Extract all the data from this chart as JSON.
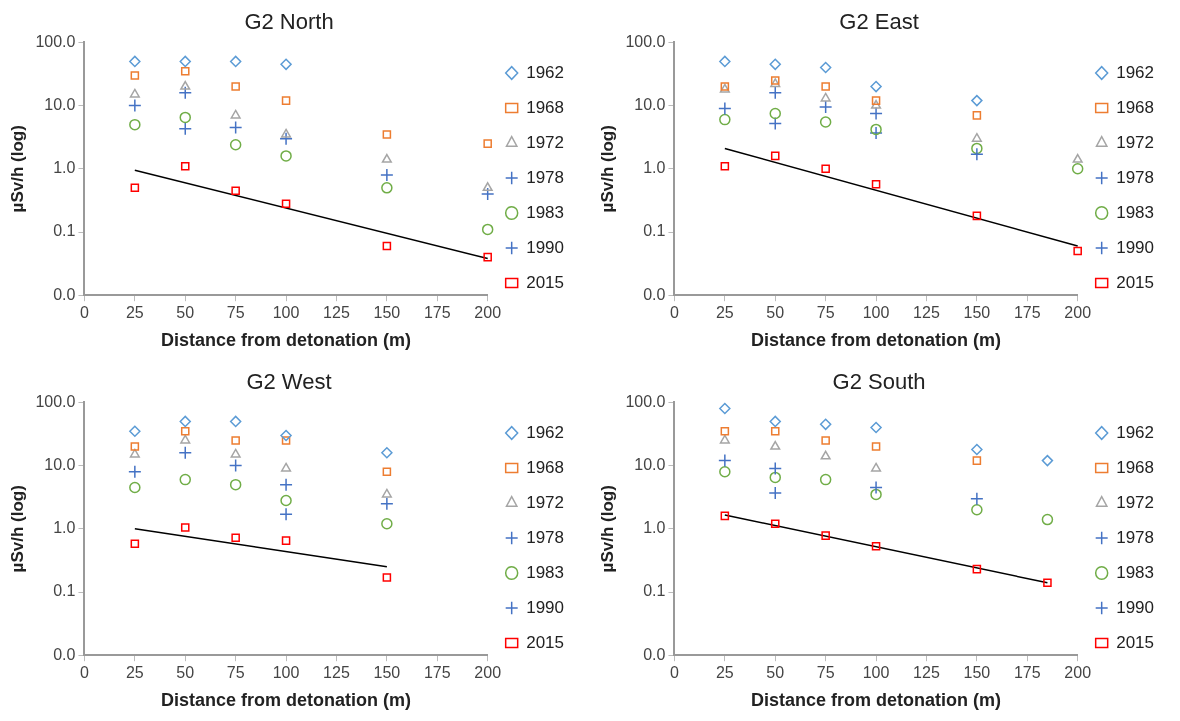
{
  "chart_data": [
    {
      "type": "scatter",
      "title": "G2 North",
      "xlabel": "Distance from detonation (m)",
      "ylabel": "µSv/h (log)",
      "log": "y",
      "grid": false,
      "legend": "right",
      "x": [
        25,
        50,
        75,
        100,
        150,
        200
      ],
      "xlim": [
        0,
        200
      ],
      "xticks": [
        0,
        25,
        50,
        75,
        100,
        125,
        150,
        175,
        200
      ],
      "ylim": [
        0.01,
        100
      ],
      "yticks": [
        {
          "value": 0.01,
          "label": "0.0"
        },
        {
          "value": 0.1,
          "label": "0.1"
        },
        {
          "value": 1,
          "label": "1.0"
        },
        {
          "value": 10,
          "label": "10.0"
        },
        {
          "value": 100,
          "label": "100.0"
        }
      ],
      "series": [
        {
          "name": "1962",
          "color": "#5b9bd5",
          "marker": "diamond",
          "values": [
            50,
            50,
            50,
            45,
            null,
            null
          ]
        },
        {
          "name": "1968",
          "color": "#ed7d31",
          "marker": "square",
          "values": [
            30,
            35,
            20,
            12,
            3.5,
            2.5
          ]
        },
        {
          "name": "1972",
          "color": "#a5a5a5",
          "marker": "triangle",
          "values": [
            15,
            20,
            7,
            3.5,
            1.4,
            0.5
          ]
        },
        {
          "name": "1978",
          "color": "#4472c4",
          "marker": "cross",
          "values": [
            10,
            16,
            4.5,
            3,
            0.8,
            0.4
          ]
        },
        {
          "name": "1983",
          "color": "#70ad47",
          "marker": "circle",
          "values": [
            5,
            6.5,
            2.4,
            1.6,
            0.5,
            0.11
          ]
        },
        {
          "name": "1990",
          "color": "#4472c4",
          "marker": "cross",
          "values": [
            null,
            4.3,
            null,
            null,
            null,
            null
          ]
        },
        {
          "name": "2015",
          "color": "#ff0000",
          "marker": "square",
          "values": [
            0.5,
            1.1,
            0.45,
            0.28,
            0.06,
            0.04
          ]
        },
        {
          "type": "line",
          "color": "#000000",
          "marker": "none",
          "x": [
            25,
            200
          ],
          "values": [
            0.95,
            0.038
          ]
        }
      ]
    },
    {
      "type": "scatter",
      "title": "G2 East",
      "xlabel": "Distance from detonation (m)",
      "ylabel": "µSv/h (log)",
      "log": "y",
      "grid": false,
      "legend": "right",
      "x": [
        25,
        50,
        75,
        100,
        150,
        200
      ],
      "xlim": [
        0,
        200
      ],
      "xticks": [
        0,
        25,
        50,
        75,
        100,
        125,
        150,
        175,
        200
      ],
      "ylim": [
        0.01,
        100
      ],
      "yticks": [
        {
          "value": 0.01,
          "label": "0.0"
        },
        {
          "value": 0.1,
          "label": "0.1"
        },
        {
          "value": 1,
          "label": "1.0"
        },
        {
          "value": 10,
          "label": "10.0"
        },
        {
          "value": 100,
          "label": "100.0"
        }
      ],
      "series": [
        {
          "name": "1962",
          "color": "#5b9bd5",
          "marker": "diamond",
          "values": [
            50,
            45,
            40,
            20,
            12,
            null
          ]
        },
        {
          "name": "1968",
          "color": "#ed7d31",
          "marker": "square",
          "values": [
            20,
            25,
            20,
            12,
            7,
            null
          ]
        },
        {
          "name": "1972",
          "color": "#a5a5a5",
          "marker": "triangle",
          "values": [
            18,
            22,
            13,
            10,
            3,
            1.4
          ]
        },
        {
          "name": "1978",
          "color": "#4472c4",
          "marker": "cross",
          "values": [
            9,
            16,
            9.5,
            7.5,
            1.7,
            null
          ]
        },
        {
          "name": "1983",
          "color": "#70ad47",
          "marker": "circle",
          "values": [
            6,
            7.5,
            5.5,
            4.2,
            2.1,
            1.0
          ]
        },
        {
          "name": "1990",
          "color": "#4472c4",
          "marker": "cross",
          "values": [
            null,
            5.2,
            null,
            3.7,
            null,
            null
          ]
        },
        {
          "name": "2015",
          "color": "#ff0000",
          "marker": "square",
          "values": [
            1.1,
            1.6,
            1.0,
            0.57,
            0.18,
            0.05
          ]
        },
        {
          "type": "line",
          "color": "#000000",
          "marker": "none",
          "x": [
            25,
            200
          ],
          "values": [
            2.1,
            0.06
          ]
        }
      ]
    },
    {
      "type": "scatter",
      "title": "G2 West",
      "xlabel": "Distance from detonation (m)",
      "ylabel": "µSv/h (log)",
      "log": "y",
      "grid": false,
      "legend": "right",
      "x": [
        25,
        50,
        75,
        100,
        150
      ],
      "xlim": [
        0,
        200
      ],
      "xticks": [
        0,
        25,
        50,
        75,
        100,
        125,
        150,
        175,
        200
      ],
      "ylim": [
        0.01,
        100
      ],
      "yticks": [
        {
          "value": 0.01,
          "label": "0.0"
        },
        {
          "value": 0.1,
          "label": "0.1"
        },
        {
          "value": 1,
          "label": "1.0"
        },
        {
          "value": 10,
          "label": "10.0"
        },
        {
          "value": 100,
          "label": "100.0"
        }
      ],
      "series": [
        {
          "name": "1962",
          "color": "#5b9bd5",
          "marker": "diamond",
          "values": [
            35,
            50,
            50,
            30,
            16
          ]
        },
        {
          "name": "1968",
          "color": "#ed7d31",
          "marker": "square",
          "values": [
            20,
            35,
            25,
            25,
            8
          ]
        },
        {
          "name": "1972",
          "color": "#a5a5a5",
          "marker": "triangle",
          "values": [
            15,
            25,
            15,
            9,
            3.5
          ]
        },
        {
          "name": "1978",
          "color": "#4472c4",
          "marker": "cross",
          "values": [
            8,
            16,
            10,
            5,
            2.5
          ]
        },
        {
          "name": "1983",
          "color": "#70ad47",
          "marker": "circle",
          "values": [
            4.5,
            6,
            5,
            2.8,
            1.2
          ]
        },
        {
          "name": "1990",
          "color": "#4472c4",
          "marker": "cross",
          "values": [
            null,
            null,
            null,
            1.7,
            null
          ]
        },
        {
          "name": "2015",
          "color": "#ff0000",
          "marker": "square",
          "values": [
            0.58,
            1.05,
            0.72,
            0.65,
            0.17
          ]
        },
        {
          "type": "line",
          "color": "#000000",
          "marker": "none",
          "x": [
            25,
            150
          ],
          "values": [
            1.0,
            0.25
          ]
        }
      ]
    },
    {
      "type": "scatter",
      "title": "G2 South",
      "xlabel": "Distance from detonation (m)",
      "ylabel": "µSv/h (log)",
      "log": "y",
      "grid": false,
      "legend": "right",
      "x": [
        25,
        50,
        75,
        100,
        150,
        185
      ],
      "xlim": [
        0,
        200
      ],
      "xticks": [
        0,
        25,
        50,
        75,
        100,
        125,
        150,
        175,
        200
      ],
      "ylim": [
        0.01,
        100
      ],
      "yticks": [
        {
          "value": 0.01,
          "label": "0.0"
        },
        {
          "value": 0.1,
          "label": "0.1"
        },
        {
          "value": 1,
          "label": "1.0"
        },
        {
          "value": 10,
          "label": "10.0"
        },
        {
          "value": 100,
          "label": "100.0"
        }
      ],
      "series": [
        {
          "name": "1962",
          "color": "#5b9bd5",
          "marker": "diamond",
          "values": [
            80,
            50,
            45,
            40,
            18,
            12
          ]
        },
        {
          "name": "1968",
          "color": "#ed7d31",
          "marker": "square",
          "values": [
            35,
            35,
            25,
            20,
            12,
            null
          ]
        },
        {
          "name": "1972",
          "color": "#a5a5a5",
          "marker": "triangle",
          "values": [
            25,
            20,
            14,
            9,
            null,
            null
          ]
        },
        {
          "name": "1978",
          "color": "#4472c4",
          "marker": "cross",
          "values": [
            12,
            9,
            null,
            4.5,
            3,
            null
          ]
        },
        {
          "name": "1983",
          "color": "#70ad47",
          "marker": "circle",
          "values": [
            8,
            6.5,
            6,
            3.5,
            2,
            1.4
          ]
        },
        {
          "name": "1990",
          "color": "#4472c4",
          "marker": "cross",
          "values": [
            null,
            3.7,
            null,
            null,
            null,
            null
          ]
        },
        {
          "name": "2015",
          "color": "#ff0000",
          "marker": "square",
          "values": [
            1.6,
            1.2,
            0.78,
            0.53,
            0.23,
            0.14
          ]
        },
        {
          "type": "line",
          "color": "#000000",
          "marker": "none",
          "x": [
            25,
            185
          ],
          "values": [
            1.65,
            0.14
          ]
        }
      ]
    }
  ]
}
